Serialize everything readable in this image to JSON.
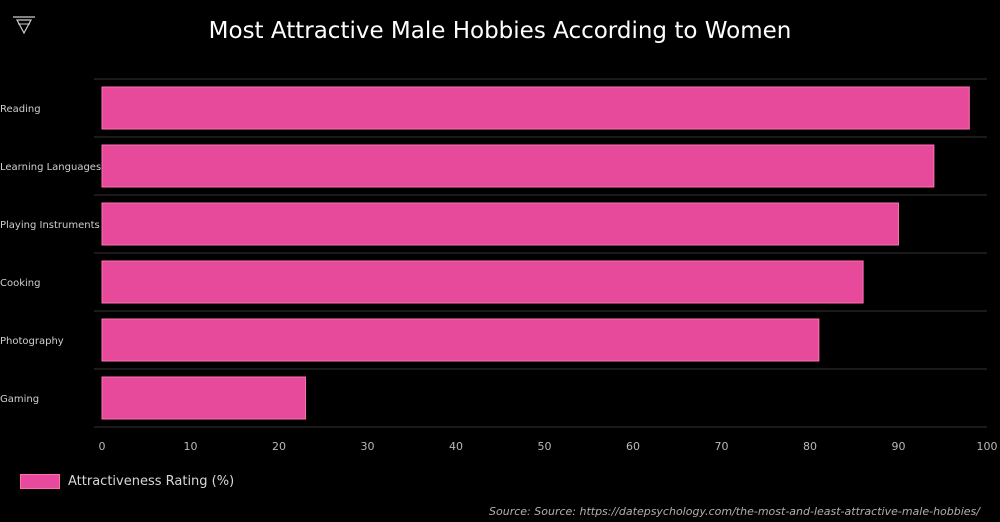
{
  "title": "Most Attractive Male Hobbies According to Women",
  "legend_label": "Attractiveness Rating (%)",
  "source": "Source: Source: https://datepsychology.com/the-most-and-least-attractive-male-hobbies/",
  "colors": {
    "bar": "#e84a9b",
    "bar_border": "#ff6fb4",
    "background": "#000000",
    "grid": "#333333"
  },
  "chart_data": {
    "type": "bar",
    "orientation": "horizontal",
    "categories": [
      "Reading",
      "Learning Languages",
      "Playing Instruments",
      "Cooking",
      "Photography",
      "Gaming"
    ],
    "series": [
      {
        "name": "Attractiveness Rating (%)",
        "values": [
          98,
          94,
          90,
          86,
          81,
          23
        ]
      }
    ],
    "title": "Most Attractive Male Hobbies According to Women",
    "xlim": [
      0,
      100
    ],
    "xticks": [
      0,
      10,
      20,
      30,
      40,
      50,
      60,
      70,
      80,
      90,
      100
    ],
    "grid": true,
    "legend_position": "bottom-left"
  }
}
